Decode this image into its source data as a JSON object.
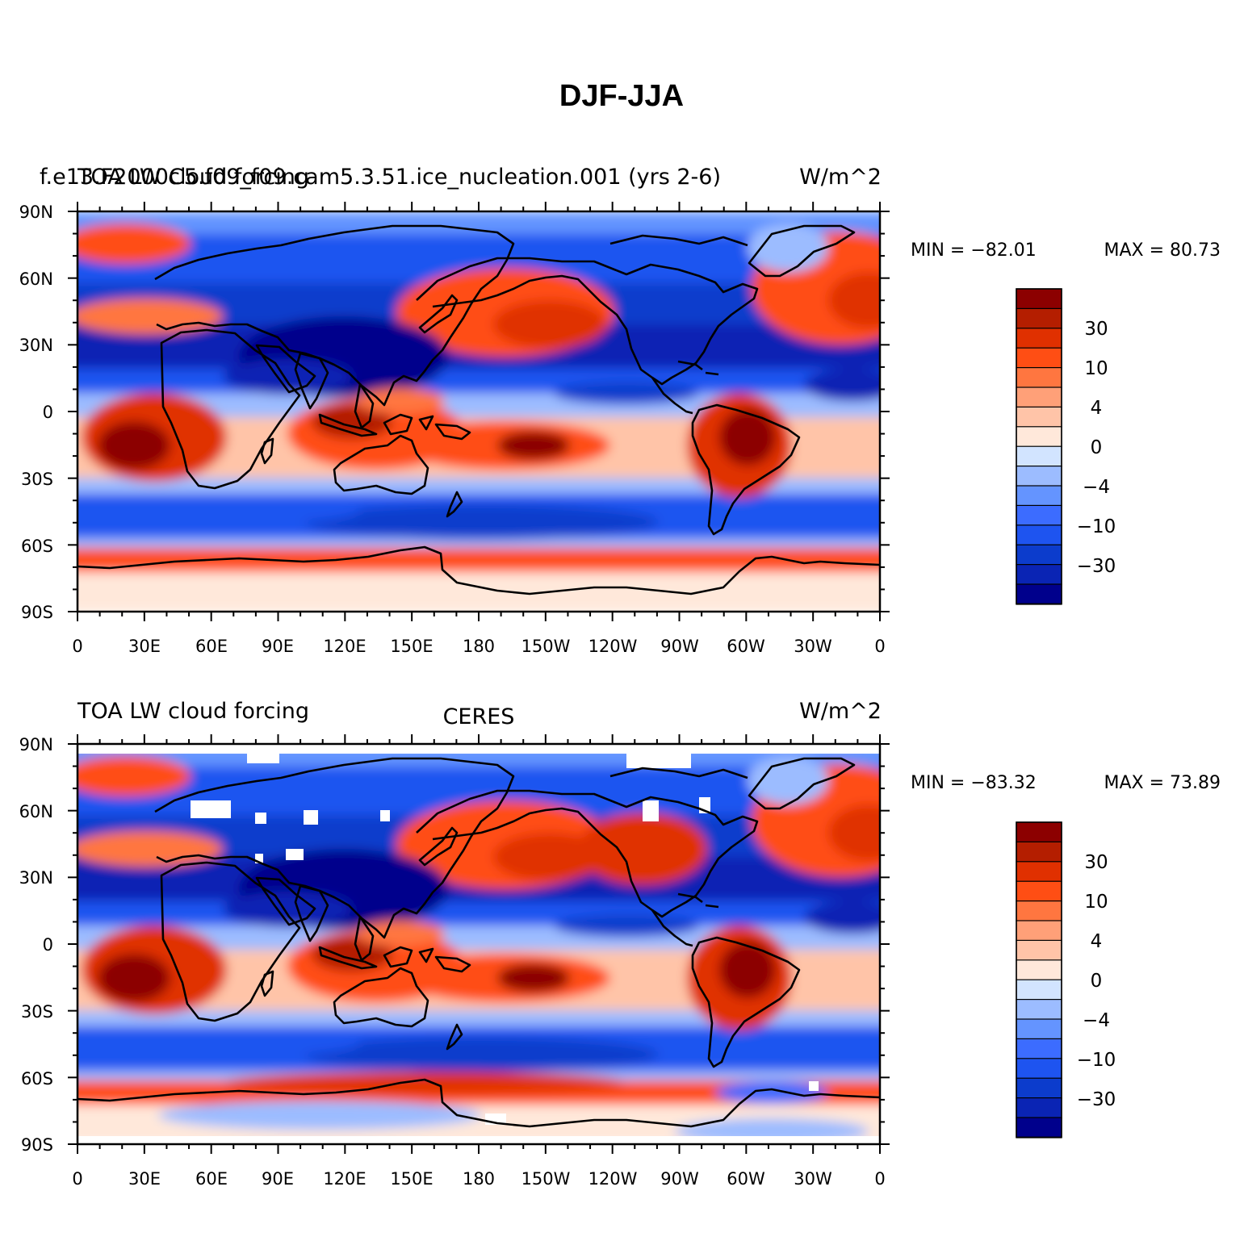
{
  "title": "DJF-JJA",
  "colors": {
    "scale": [
      "#00008c",
      "#0a24b4",
      "#0c3ccc",
      "#1e54f0",
      "#3c6cff",
      "#6494ff",
      "#9cbcff",
      "#d2e4ff",
      "#ffe8da",
      "#ffc4a8",
      "#ffa078",
      "#ff7640",
      "#ff4e14",
      "#e03000",
      "#b41e00",
      "#8c0000"
    ],
    "coast": "#000000",
    "missing": "#ffffff"
  },
  "colorbar": {
    "labels": [
      "30",
      "10",
      "4",
      "0",
      "−4",
      "−10",
      "−30"
    ]
  },
  "axes": {
    "lat_labels": [
      "90N",
      "60N",
      "30N",
      "0",
      "30S",
      "60S",
      "90S"
    ],
    "lon_labels": [
      "0",
      "30E",
      "60E",
      "90E",
      "120E",
      "150E",
      "180",
      "150W",
      "120W",
      "90W",
      "60W",
      "30W",
      "0"
    ]
  },
  "panels": [
    {
      "left_overlap": "TOA LW cloud forcing",
      "left": "f.e13.F2000C5.f09_f09.cam5.3.51.ice_nucleation.001 (yrs 2-6)",
      "right": "W/m^2",
      "center": "",
      "min_label": "MIN = −82.01",
      "max_label": "MAX =   80.73",
      "min": -82.01,
      "max": 80.73
    },
    {
      "left_overlap": "",
      "left": "TOA LW cloud forcing",
      "right": "W/m^2",
      "center": "CERES",
      "min_label": "MIN = −83.32",
      "max_label": "MAX =   73.89",
      "min": -83.32,
      "max": 73.89
    }
  ]
}
